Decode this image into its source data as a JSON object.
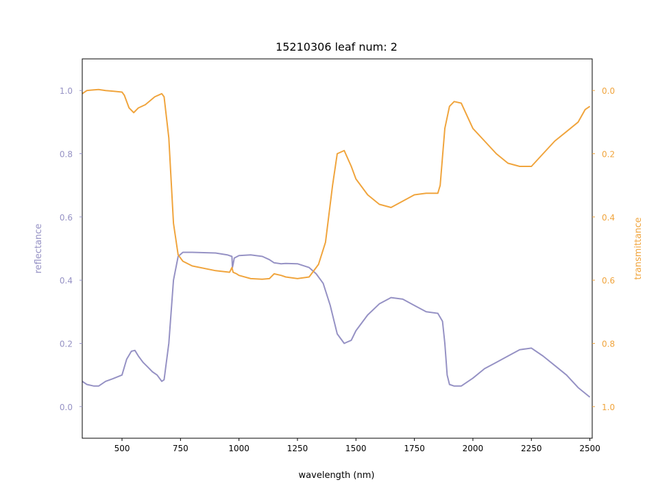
{
  "chart_data": {
    "type": "line",
    "title": "15210306 leaf num: 2",
    "xlabel": "wavelength (nm)",
    "xlim": [
      330,
      2510
    ],
    "x_ticks": [
      500,
      750,
      1000,
      1250,
      1500,
      1750,
      2000,
      2250,
      2500
    ],
    "y_left": {
      "label": "reflectance",
      "color": "#9591c4",
      "lim": [
        -0.1,
        1.1
      ],
      "ticks": [
        0.0,
        0.2,
        0.4,
        0.6,
        0.8,
        1.0
      ]
    },
    "y_right": {
      "label": "transmittance",
      "color": "#f0a43c",
      "lim": [
        1.1,
        -0.1
      ],
      "inverted": true,
      "ticks": [
        0.0,
        0.2,
        0.4,
        0.6,
        0.8,
        1.0
      ]
    },
    "series": [
      {
        "axis": "left",
        "color": "#9591c4",
        "x": [
          330,
          350,
          380,
          400,
          430,
          460,
          500,
          520,
          540,
          555,
          570,
          590,
          610,
          630,
          650,
          670,
          680,
          700,
          720,
          740,
          760,
          800,
          900,
          950,
          970,
          972,
          975,
          980,
          1000,
          1050,
          1100,
          1130,
          1150,
          1180,
          1200,
          1250,
          1300,
          1330,
          1360,
          1390,
          1420,
          1450,
          1480,
          1500,
          1550,
          1600,
          1650,
          1700,
          1750,
          1800,
          1850,
          1870,
          1880,
          1890,
          1900,
          1920,
          1950,
          2000,
          2050,
          2100,
          2150,
          2200,
          2250,
          2300,
          2350,
          2400,
          2450,
          2500
        ],
        "y": [
          0.08,
          0.07,
          0.065,
          0.065,
          0.08,
          0.088,
          0.1,
          0.15,
          0.175,
          0.178,
          0.16,
          0.14,
          0.125,
          0.11,
          0.1,
          0.08,
          0.085,
          0.2,
          0.4,
          0.475,
          0.488,
          0.488,
          0.486,
          0.48,
          0.475,
          0.44,
          0.45,
          0.47,
          0.478,
          0.48,
          0.475,
          0.465,
          0.455,
          0.452,
          0.453,
          0.452,
          0.44,
          0.42,
          0.39,
          0.32,
          0.23,
          0.2,
          0.21,
          0.24,
          0.29,
          0.325,
          0.345,
          0.34,
          0.32,
          0.3,
          0.295,
          0.27,
          0.2,
          0.1,
          0.07,
          0.065,
          0.065,
          0.09,
          0.12,
          0.14,
          0.16,
          0.18,
          0.185,
          0.16,
          0.13,
          0.1,
          0.06,
          0.03
        ]
      },
      {
        "axis": "right",
        "color": "#f0a43c",
        "x": [
          330,
          350,
          380,
          400,
          430,
          460,
          500,
          510,
          530,
          550,
          570,
          600,
          640,
          670,
          680,
          700,
          720,
          740,
          760,
          800,
          900,
          960,
          970,
          975,
          990,
          1000,
          1050,
          1100,
          1130,
          1150,
          1180,
          1200,
          1250,
          1300,
          1340,
          1370,
          1400,
          1420,
          1450,
          1480,
          1500,
          1550,
          1600,
          1650,
          1700,
          1750,
          1800,
          1850,
          1860,
          1880,
          1900,
          1920,
          1950,
          2000,
          2050,
          2100,
          2150,
          2200,
          2250,
          2300,
          2350,
          2400,
          2450,
          2480,
          2500
        ],
        "y": [
          0.01,
          0.0,
          -0.002,
          -0.003,
          0.0,
          0.002,
          0.005,
          0.015,
          0.055,
          0.07,
          0.055,
          0.045,
          0.02,
          0.01,
          0.02,
          0.15,
          0.42,
          0.52,
          0.54,
          0.555,
          0.57,
          0.575,
          0.56,
          0.575,
          0.58,
          0.585,
          0.595,
          0.597,
          0.595,
          0.58,
          0.585,
          0.59,
          0.595,
          0.59,
          0.55,
          0.48,
          0.3,
          0.2,
          0.19,
          0.24,
          0.28,
          0.33,
          0.36,
          0.37,
          0.35,
          0.33,
          0.325,
          0.325,
          0.3,
          0.12,
          0.05,
          0.035,
          0.04,
          0.12,
          0.16,
          0.2,
          0.23,
          0.24,
          0.24,
          0.2,
          0.16,
          0.13,
          0.1,
          0.06,
          0.05
        ]
      }
    ]
  }
}
